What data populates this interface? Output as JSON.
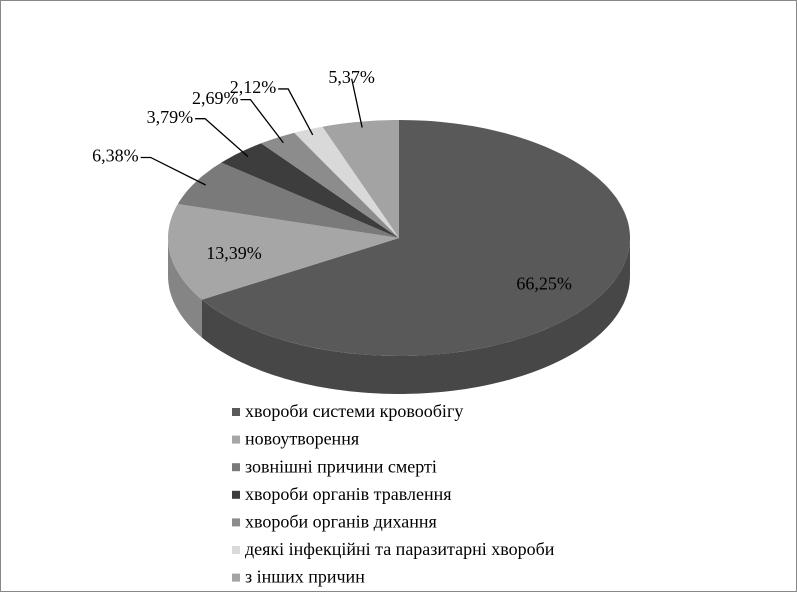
{
  "chart_data": {
    "type": "pie3d",
    "categories": [
      "хвороби системи кровообігу",
      "новоутворення",
      "зовнішні причини смерті",
      "хвороби органів травлення",
      "хвороби органів дихання",
      "деякі інфекційні  та паразитарні хвороби",
      "з інших причин"
    ],
    "values": [
      66.25,
      13.39,
      6.38,
      3.79,
      2.69,
      2.12,
      5.37
    ],
    "value_labels": [
      "66,25%",
      "13,39%",
      "6,38%",
      "3,79%",
      "2,69%",
      "2,12%",
      "5,37%"
    ],
    "colors": [
      "#595959",
      "#a6a6a6",
      "#7a7a7a",
      "#3d3d3d",
      "#8c8c8c",
      "#d9d9d9",
      "#a3a3a3"
    ],
    "legend": "bottom"
  }
}
